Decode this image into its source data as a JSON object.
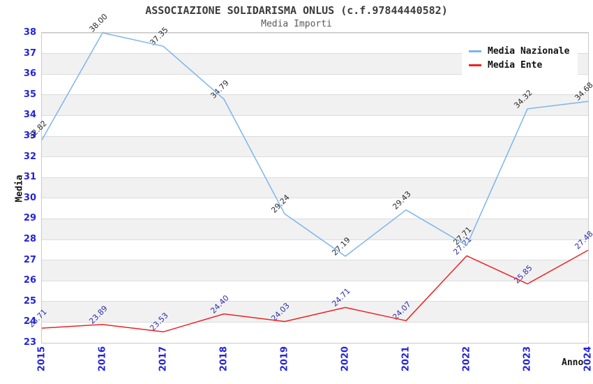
{
  "title": "ASSOCIAZIONE SOLIDARISMA ONLUS (c.f.97844440582)",
  "subtitle": "Media Importi",
  "legend": {
    "position": "top-right",
    "items": [
      {
        "label": "Media Nazionale",
        "color": "#7cb5ec"
      },
      {
        "label": "Media Ente",
        "color": "#ee2222"
      }
    ]
  },
  "chart_data": {
    "type": "line",
    "title": "ASSOCIAZIONE SOLIDARISMA ONLUS (c.f.97844440582)",
    "subtitle": "Media Importi",
    "xlabel": "Anno",
    "ylabel": "Media",
    "categories": [
      "2015",
      "2016",
      "2017",
      "2018",
      "2019",
      "2020",
      "2021",
      "2022",
      "2023",
      "2024"
    ],
    "ylim": [
      23,
      38
    ],
    "y_ticks": [
      23,
      24,
      25,
      26,
      27,
      28,
      29,
      30,
      31,
      32,
      33,
      34,
      35,
      36,
      37,
      38
    ],
    "grid": true,
    "band_color": "#f1f1f1",
    "tick_label_color": "#2323dd",
    "legend_position": "top-right",
    "series": [
      {
        "name": "Media Nazionale",
        "color": "#7cb5ec",
        "label_color": "#2b2b2b",
        "values": [
          32.82,
          38.0,
          37.35,
          34.79,
          29.24,
          27.19,
          29.43,
          27.71,
          34.32,
          34.68
        ]
      },
      {
        "name": "Media Ente",
        "color": "#ee2222",
        "label_color": "#2d2dae",
        "values": [
          23.71,
          23.89,
          23.53,
          24.4,
          24.03,
          24.71,
          24.07,
          27.21,
          25.85,
          27.48
        ]
      }
    ]
  }
}
